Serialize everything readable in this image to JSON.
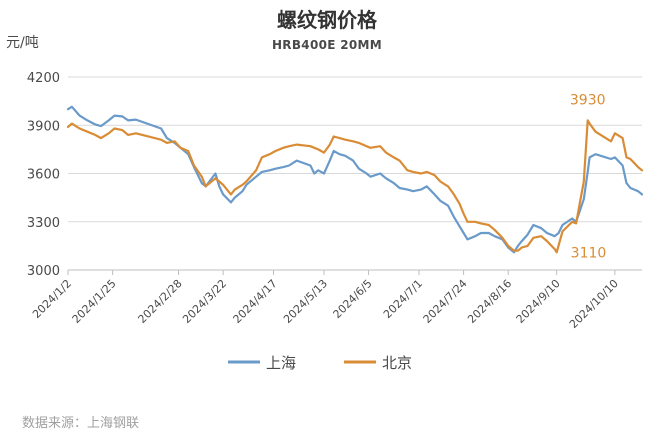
{
  "chart_data": {
    "type": "line",
    "title": "螺纹钢价格",
    "subtitle": "HRB400E 20MM",
    "ylabel": "元/吨",
    "ylim": [
      3000,
      4200
    ],
    "yticks": [
      3000,
      3300,
      3600,
      3900,
      4200
    ],
    "xlim": [
      "2024/1/2",
      "2024/10/24"
    ],
    "xticks": [
      "2024/1/2",
      "2024/1/25",
      "2024/2/28",
      "2024/3/22",
      "2024/4/17",
      "2024/5/13",
      "2024/6/5",
      "2024/7/1",
      "2024/7/24",
      "2024/8/16",
      "2024/9/10",
      "2024/10/10"
    ],
    "grid": "horizontal",
    "legend_position": "bottom",
    "source": "数据来源：上海钢联",
    "annotations": [
      {
        "text": "3930",
        "x": "2024/9/26",
        "y": 3930,
        "series": "北京"
      },
      {
        "text": "3110",
        "x": "2024/9/10",
        "y": 3110,
        "series": "北京"
      }
    ],
    "series": [
      {
        "name": "上海",
        "color": "#6a9ac9",
        "points": [
          [
            "2024/1/2",
            4000
          ],
          [
            "2024/1/4",
            4015
          ],
          [
            "2024/1/8",
            3960
          ],
          [
            "2024/1/12",
            3930
          ],
          [
            "2024/1/16",
            3905
          ],
          [
            "2024/1/19",
            3895
          ],
          [
            "2024/1/23",
            3930
          ],
          [
            "2024/1/26",
            3960
          ],
          [
            "2024/1/30",
            3955
          ],
          [
            "2024/2/2",
            3930
          ],
          [
            "2024/2/6",
            3935
          ],
          [
            "2024/2/19",
            3880
          ],
          [
            "2024/2/22",
            3820
          ],
          [
            "2024/2/26",
            3790
          ],
          [
            "2024/2/29",
            3760
          ],
          [
            "2024/3/4",
            3720
          ],
          [
            "2024/3/7",
            3640
          ],
          [
            "2024/3/11",
            3540
          ],
          [
            "2024/3/13",
            3520
          ],
          [
            "2024/3/18",
            3600
          ],
          [
            "2024/3/20",
            3520
          ],
          [
            "2024/3/22",
            3470
          ],
          [
            "2024/3/26",
            3420
          ],
          [
            "2024/3/28",
            3450
          ],
          [
            "2024/4/1",
            3490
          ],
          [
            "2024/4/3",
            3530
          ],
          [
            "2024/4/8",
            3580
          ],
          [
            "2024/4/11",
            3610
          ],
          [
            "2024/4/15",
            3620
          ],
          [
            "2024/4/18",
            3630
          ],
          [
            "2024/4/22",
            3640
          ],
          [
            "2024/4/25",
            3650
          ],
          [
            "2024/4/29",
            3680
          ],
          [
            "2024/5/6",
            3650
          ],
          [
            "2024/5/8",
            3600
          ],
          [
            "2024/5/10",
            3620
          ],
          [
            "2024/5/13",
            3600
          ],
          [
            "2024/5/16",
            3680
          ],
          [
            "2024/5/18",
            3740
          ],
          [
            "2024/5/21",
            3720
          ],
          [
            "2024/5/24",
            3710
          ],
          [
            "2024/5/28",
            3680
          ],
          [
            "2024/5/31",
            3630
          ],
          [
            "2024/6/4",
            3600
          ],
          [
            "2024/6/6",
            3580
          ],
          [
            "2024/6/11",
            3600
          ],
          [
            "2024/6/14",
            3570
          ],
          [
            "2024/6/18",
            3540
          ],
          [
            "2024/6/21",
            3510
          ],
          [
            "2024/6/25",
            3500
          ],
          [
            "2024/6/28",
            3490
          ],
          [
            "2024/7/2",
            3500
          ],
          [
            "2024/7/5",
            3520
          ],
          [
            "2024/7/9",
            3470
          ],
          [
            "2024/7/12",
            3430
          ],
          [
            "2024/7/16",
            3400
          ],
          [
            "2024/7/19",
            3330
          ],
          [
            "2024/7/22",
            3270
          ],
          [
            "2024/7/24",
            3230
          ],
          [
            "2024/7/26",
            3190
          ],
          [
            "2024/7/30",
            3210
          ],
          [
            "2024/8/2",
            3230
          ],
          [
            "2024/8/6",
            3230
          ],
          [
            "2024/8/9",
            3210
          ],
          [
            "2024/8/13",
            3190
          ],
          [
            "2024/8/16",
            3140
          ],
          [
            "2024/8/19",
            3110
          ],
          [
            "2024/8/21",
            3150
          ],
          [
            "2024/8/23",
            3180
          ],
          [
            "2024/8/26",
            3220
          ],
          [
            "2024/8/29",
            3280
          ],
          [
            "2024/9/2",
            3260
          ],
          [
            "2024/9/5",
            3230
          ],
          [
            "2024/9/9",
            3210
          ],
          [
            "2024/9/11",
            3230
          ],
          [
            "2024/9/13",
            3280
          ],
          [
            "2024/9/18",
            3320
          ],
          [
            "2024/9/20",
            3300
          ],
          [
            "2024/9/24",
            3440
          ],
          [
            "2024/9/26",
            3610
          ],
          [
            "2024/9/27",
            3700
          ],
          [
            "2024/9/30",
            3720
          ],
          [
            "2024/10/8",
            3690
          ],
          [
            "2024/10/10",
            3700
          ],
          [
            "2024/10/14",
            3650
          ],
          [
            "2024/10/16",
            3540
          ],
          [
            "2024/10/18",
            3510
          ],
          [
            "2024/10/22",
            3490
          ],
          [
            "2024/10/24",
            3470
          ]
        ]
      },
      {
        "name": "北京",
        "color": "#d98c35",
        "points": [
          [
            "2024/1/2",
            3890
          ],
          [
            "2024/1/4",
            3910
          ],
          [
            "2024/1/8",
            3880
          ],
          [
            "2024/1/12",
            3860
          ],
          [
            "2024/1/16",
            3840
          ],
          [
            "2024/1/19",
            3820
          ],
          [
            "2024/1/23",
            3850
          ],
          [
            "2024/1/26",
            3880
          ],
          [
            "2024/1/30",
            3870
          ],
          [
            "2024/2/2",
            3840
          ],
          [
            "2024/2/6",
            3850
          ],
          [
            "2024/2/19",
            3810
          ],
          [
            "2024/2/22",
            3790
          ],
          [
            "2024/2/26",
            3800
          ],
          [
            "2024/2/29",
            3760
          ],
          [
            "2024/3/4",
            3740
          ],
          [
            "2024/3/7",
            3650
          ],
          [
            "2024/3/11",
            3580
          ],
          [
            "2024/3/13",
            3520
          ],
          [
            "2024/3/18",
            3570
          ],
          [
            "2024/3/20",
            3550
          ],
          [
            "2024/3/22",
            3530
          ],
          [
            "2024/3/26",
            3470
          ],
          [
            "2024/3/28",
            3500
          ],
          [
            "2024/4/1",
            3530
          ],
          [
            "2024/4/3",
            3550
          ],
          [
            "2024/4/8",
            3620
          ],
          [
            "2024/4/11",
            3700
          ],
          [
            "2024/4/15",
            3720
          ],
          [
            "2024/4/18",
            3740
          ],
          [
            "2024/4/22",
            3760
          ],
          [
            "2024/4/25",
            3770
          ],
          [
            "2024/4/29",
            3780
          ],
          [
            "2024/5/6",
            3770
          ],
          [
            "2024/5/8",
            3760
          ],
          [
            "2024/5/10",
            3750
          ],
          [
            "2024/5/13",
            3730
          ],
          [
            "2024/5/16",
            3780
          ],
          [
            "2024/5/18",
            3830
          ],
          [
            "2024/5/21",
            3820
          ],
          [
            "2024/5/24",
            3810
          ],
          [
            "2024/5/28",
            3800
          ],
          [
            "2024/5/31",
            3790
          ],
          [
            "2024/6/4",
            3770
          ],
          [
            "2024/6/6",
            3760
          ],
          [
            "2024/6/11",
            3770
          ],
          [
            "2024/6/14",
            3730
          ],
          [
            "2024/6/18",
            3700
          ],
          [
            "2024/6/21",
            3680
          ],
          [
            "2024/6/25",
            3620
          ],
          [
            "2024/6/28",
            3610
          ],
          [
            "2024/7/2",
            3600
          ],
          [
            "2024/7/5",
            3610
          ],
          [
            "2024/7/9",
            3590
          ],
          [
            "2024/7/12",
            3550
          ],
          [
            "2024/7/16",
            3520
          ],
          [
            "2024/7/19",
            3470
          ],
          [
            "2024/7/22",
            3410
          ],
          [
            "2024/7/24",
            3350
          ],
          [
            "2024/7/26",
            3300
          ],
          [
            "2024/7/30",
            3300
          ],
          [
            "2024/8/2",
            3290
          ],
          [
            "2024/8/6",
            3280
          ],
          [
            "2024/8/9",
            3250
          ],
          [
            "2024/8/13",
            3200
          ],
          [
            "2024/8/16",
            3150
          ],
          [
            "2024/8/19",
            3120
          ],
          [
            "2024/8/21",
            3120
          ],
          [
            "2024/8/23",
            3140
          ],
          [
            "2024/8/26",
            3150
          ],
          [
            "2024/8/29",
            3200
          ],
          [
            "2024/9/2",
            3210
          ],
          [
            "2024/9/5",
            3180
          ],
          [
            "2024/9/9",
            3130
          ],
          [
            "2024/9/10",
            3110
          ],
          [
            "2024/9/13",
            3240
          ],
          [
            "2024/9/18",
            3300
          ],
          [
            "2024/9/20",
            3290
          ],
          [
            "2024/9/24",
            3550
          ],
          [
            "2024/9/26",
            3930
          ],
          [
            "2024/9/27",
            3910
          ],
          [
            "2024/9/30",
            3860
          ],
          [
            "2024/10/8",
            3800
          ],
          [
            "2024/10/10",
            3850
          ],
          [
            "2024/10/14",
            3820
          ],
          [
            "2024/10/16",
            3700
          ],
          [
            "2024/10/18",
            3690
          ],
          [
            "2024/10/22",
            3640
          ],
          [
            "2024/10/24",
            3620
          ]
        ]
      }
    ]
  }
}
